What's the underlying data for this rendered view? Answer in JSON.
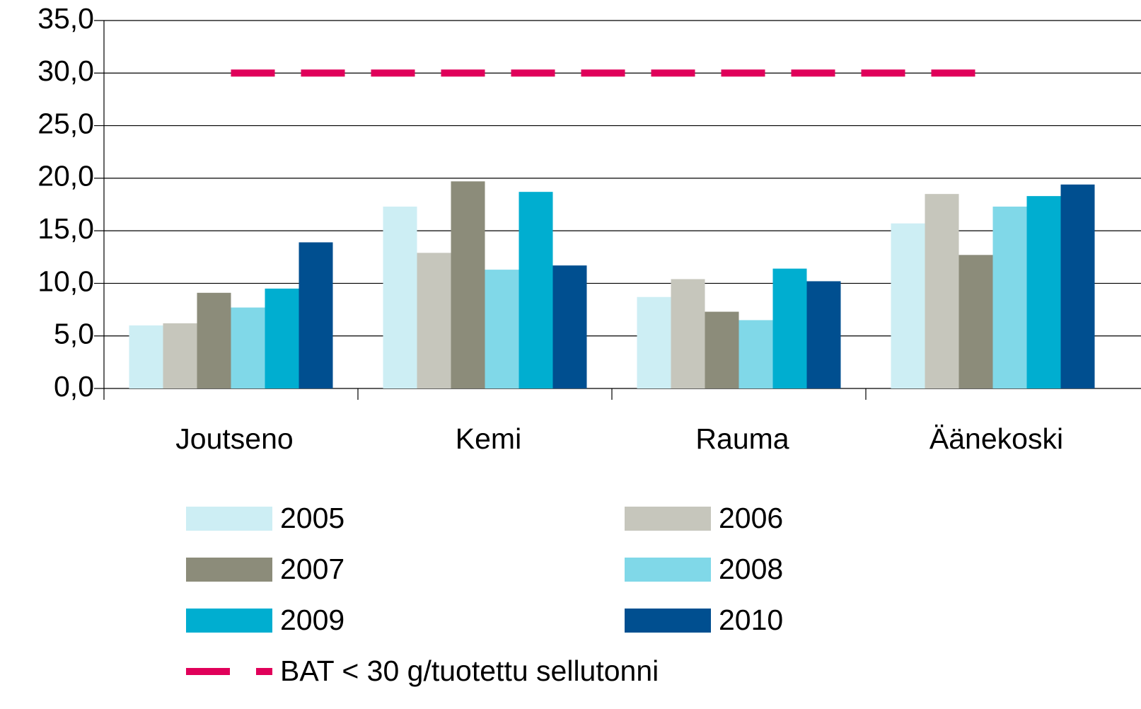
{
  "chart_data": {
    "type": "bar",
    "categories": [
      "Joutseno",
      "Kemi",
      "Rauma",
      "Äänekoski"
    ],
    "series": [
      {
        "name": "2005",
        "color": "#cdeef4",
        "values": [
          6.0,
          17.3,
          8.7,
          15.7
        ]
      },
      {
        "name": "2006",
        "color": "#c6c6bc",
        "values": [
          6.2,
          12.9,
          10.4,
          18.5
        ]
      },
      {
        "name": "2007",
        "color": "#8c8c7a",
        "values": [
          9.1,
          19.7,
          7.3,
          12.7
        ]
      },
      {
        "name": "2008",
        "color": "#80d8e8",
        "values": [
          7.7,
          11.3,
          6.5,
          17.3
        ]
      },
      {
        "name": "2009",
        "color": "#00aed0",
        "values": [
          9.5,
          18.7,
          11.4,
          18.3
        ]
      },
      {
        "name": "2010",
        "color": "#004f90",
        "values": [
          13.9,
          11.7,
          10.2,
          19.4
        ]
      },
      {
        "name": "BAT < 30 g/tuotettu sellutonni",
        "type": "line",
        "dashed": true,
        "color": "#e0005a",
        "values": [
          30,
          30,
          30,
          30
        ]
      }
    ],
    "ylim": [
      0,
      35
    ],
    "yticks": [
      {
        "value": 0,
        "label": "0,0"
      },
      {
        "value": 5,
        "label": "5,0"
      },
      {
        "value": 10,
        "label": "10,0"
      },
      {
        "value": 15,
        "label": "15,0"
      },
      {
        "value": 20,
        "label": "20,0"
      },
      {
        "value": 25,
        "label": "25,0"
      },
      {
        "value": 30,
        "label": "30,0"
      },
      {
        "value": 35,
        "label": "35,0"
      }
    ],
    "grid": true
  }
}
